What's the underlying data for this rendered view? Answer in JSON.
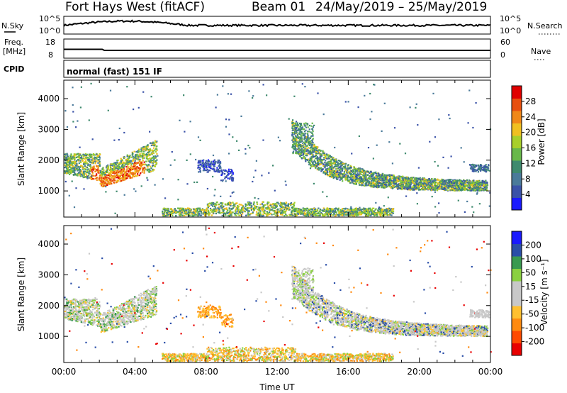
{
  "header": {
    "station": "Fort Hays West (fitACF)",
    "beam": "Beam 01",
    "dates": "24/May/2019 – 25/May/2019"
  },
  "strips": {
    "nsky": {
      "label": "N.Sky",
      "ticks": [
        "10^5",
        "10^0"
      ],
      "right_label": "N.Search",
      "right_ticks": [
        "10^5",
        "10^0"
      ]
    },
    "freq": {
      "label_top": "Freq.",
      "label_bottom": "[MHz]",
      "ticks": [
        "18",
        "8"
      ],
      "right_label": "Nave",
      "right_ticks": [
        "60",
        "0"
      ]
    },
    "cpid": {
      "label": "CPID",
      "value": "normal (fast) 151 IF"
    }
  },
  "colors": {
    "power": [
      "#1a1aff",
      "#3a52a8",
      "#4a7a9a",
      "#3f8a6e",
      "#68b84a",
      "#a8d02a",
      "#f0c020",
      "#f08818",
      "#e85010",
      "#e00000"
    ],
    "velocity": [
      "#e80000",
      "#ff4a00",
      "#ff8a10",
      "#ffc030",
      "#c8c8c8",
      "#c8c8c8",
      "#8ad040",
      "#3a9a50",
      "#2a4ea8",
      "#1a1aff"
    ]
  },
  "chart_data": [
    {
      "type": "heatmap",
      "title": "",
      "ylabel": "Slant Range [km]",
      "ylim": [
        150,
        4600
      ],
      "yticks": [
        "1000",
        "2000",
        "3000",
        "4000"
      ],
      "xticks": [
        "00:00",
        "04:00",
        "08:00",
        "12:00",
        "16:00",
        "20:00",
        "00:00"
      ],
      "colorbar": {
        "label": "Power [dB]",
        "ticks": [
          "4",
          "8",
          "12",
          "16",
          "20",
          "24",
          "28"
        ],
        "range": [
          0,
          30
        ]
      },
      "features": [
        {
          "time_h": [
            0.0,
            5.2
          ],
          "range_km": [
            1000,
            2800
          ],
          "value": "18–28"
        },
        {
          "time_h": [
            7.5,
            9.5
          ],
          "range_km": [
            1500,
            2000
          ],
          "value": "6"
        },
        {
          "time_h": [
            12.8,
            23.8
          ],
          "range_km": [
            1000,
            3200
          ],
          "value": "8–18"
        },
        {
          "time_h": [
            6.0,
            18.0
          ],
          "range_km": [
            150,
            700
          ],
          "value": "10–16"
        }
      ]
    },
    {
      "type": "heatmap",
      "title": "",
      "ylabel": "Slant Range [km]",
      "ylim": [
        150,
        4600
      ],
      "yticks": [
        "1000",
        "2000",
        "3000",
        "4000"
      ],
      "xticks": [
        "00:00",
        "04:00",
        "08:00",
        "12:00",
        "16:00",
        "20:00",
        "00:00"
      ],
      "xlabel": "Time UT",
      "colorbar": {
        "label": "Velocity [m s⁻¹]",
        "ticks": [
          "-200",
          "-100",
          "-50",
          "-15",
          "15",
          "50",
          "100",
          "200"
        ],
        "range": [
          -250,
          250
        ]
      },
      "features": [
        {
          "time_h": [
            0.0,
            5.2
          ],
          "range_km": [
            1000,
            2800
          ],
          "value": "-15–15"
        },
        {
          "time_h": [
            7.5,
            9.5
          ],
          "range_km": [
            1300,
            2000
          ],
          "value": "-60"
        },
        {
          "time_h": [
            12.8,
            23.8
          ],
          "range_km": [
            1000,
            3200
          ],
          "value": "-15–15"
        },
        {
          "time_h": [
            6.0,
            18.0
          ],
          "range_km": [
            150,
            600
          ],
          "value": "-50–50"
        }
      ]
    }
  ]
}
